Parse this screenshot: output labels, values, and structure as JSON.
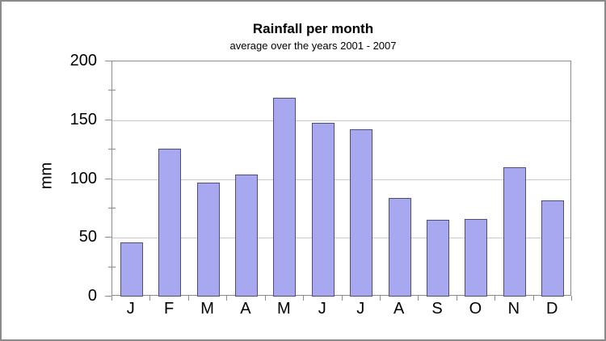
{
  "window": {
    "background": "#ffffff",
    "border_color": "#8a8a8a"
  },
  "chart_data": {
    "type": "bar",
    "title": "Rainfall per month",
    "subtitle": "average over the years 2001 - 2007",
    "ylabel": "mm",
    "xlabel": "",
    "categories": [
      "J",
      "F",
      "M",
      "A",
      "M",
      "J",
      "J",
      "A",
      "S",
      "O",
      "N",
      "D"
    ],
    "values": [
      46,
      126,
      97,
      104,
      169,
      148,
      142,
      84,
      65,
      66,
      110,
      82
    ],
    "ylim": [
      0,
      200
    ],
    "ytick_major": [
      0,
      50,
      100,
      150,
      200
    ],
    "ytick_minor": [
      25,
      75,
      125,
      175
    ],
    "grid": "horizontal-major",
    "legend": "none",
    "colors": {
      "bar_fill": "#a8a8f0",
      "bar_border": "#4e4e78",
      "gridline": "#c9c9c9",
      "axis": "#8c8c8c",
      "text": "#000000"
    }
  }
}
